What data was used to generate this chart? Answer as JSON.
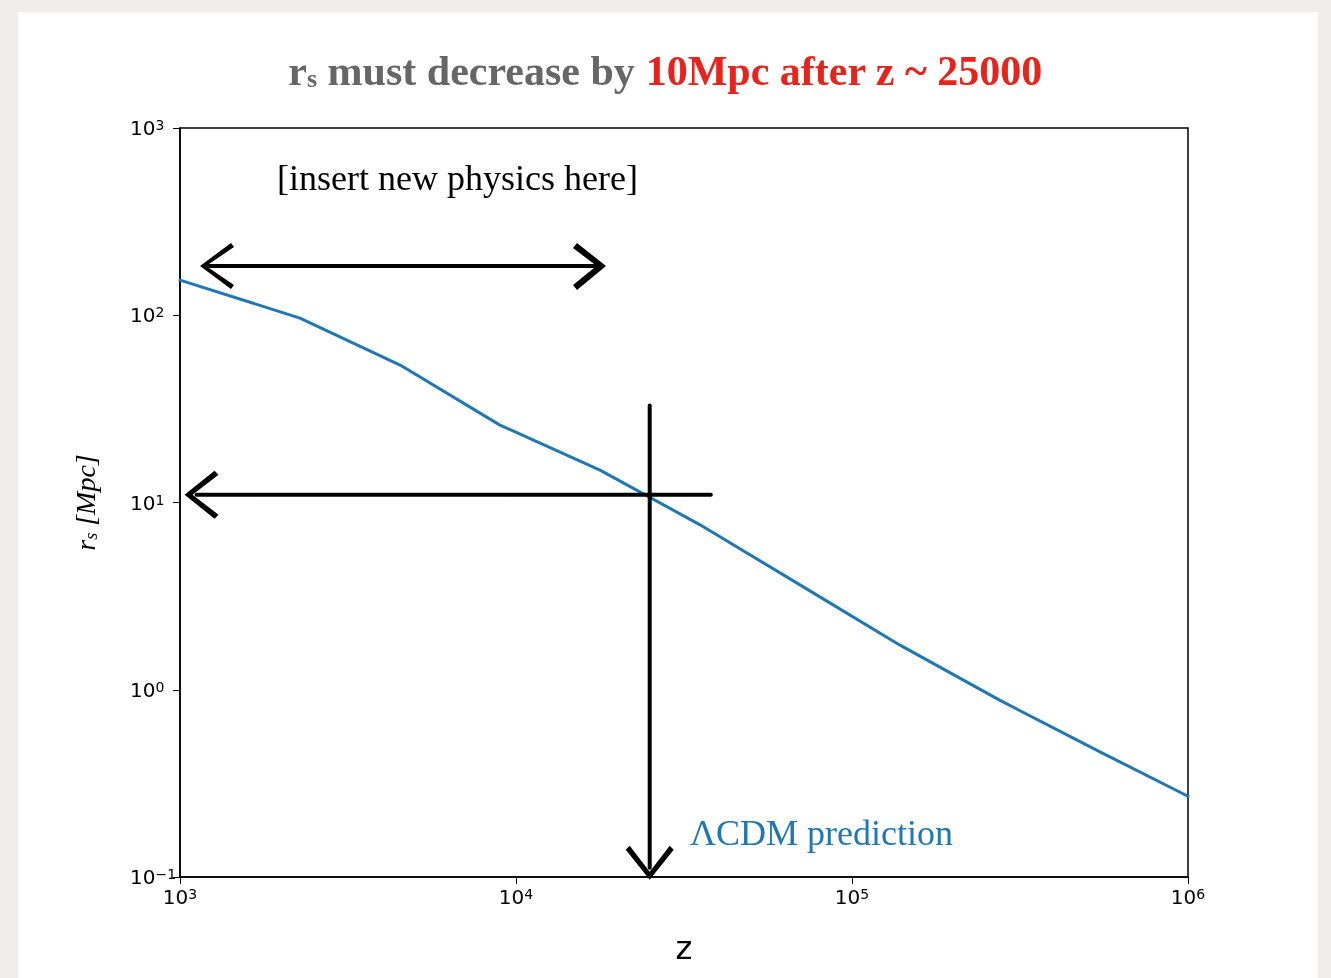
{
  "chart_data": {
    "type": "line",
    "title": "r$_{s}$ must decrease by",
    "subtitle": "10Mpc after z ~ 25000",
    "xlabel": "z",
    "ylabel": "r$_{s}$ [Mpc]",
    "x": [
      1000,
      2275,
      4520,
      8960,
      17780,
      35300,
      70000,
      139000,
      275000,
      547000,
      1000000
    ],
    "series": [
      {
        "name": "ΛCDM prediction",
        "color": "#1f77b4",
        "values": [
          154,
          96.6,
          54.2,
          25.9,
          14.9,
          7.6,
          3.63,
          1.73,
          0.88,
          0.466,
          0.27
        ]
      },
      {
        "type": "line",
        "color": "#000000",
        "x": [
          1120,
          38000
        ],
        "values": [
          11,
          11
        ]
      },
      {
        "type": "line",
        "color": "#000000",
        "x": [
          25000,
          25000
        ],
        "values": [
          0.112,
          33
        ]
      }
    ],
    "xlim": [
      1000,
      1000000
    ],
    "ylim": [
      0.1,
      1000
    ],
    "xticks": [
      {
        "value": 1000,
        "label": "10$^{3}$"
      },
      {
        "value": 10000,
        "label": "10$^{4}$"
      },
      {
        "value": 100000,
        "label": "10$^{5}$"
      },
      {
        "value": 1000000,
        "label": "10$^{6}$"
      }
    ],
    "yticks": [
      {
        "value": 0.1,
        "label": "10$^{−1}$"
      },
      {
        "value": 1,
        "label": "10$^{0}$"
      },
      {
        "value": 10,
        "label": "10$^{1}$"
      },
      {
        "value": 100,
        "label": "10$^{2}$"
      },
      {
        "value": 1000,
        "label": "10$^{3}$"
      }
    ],
    "log": "xy",
    "marker": "none",
    "line_style": "solid",
    "annotations": [
      "[insert new physics here]"
    ]
  }
}
